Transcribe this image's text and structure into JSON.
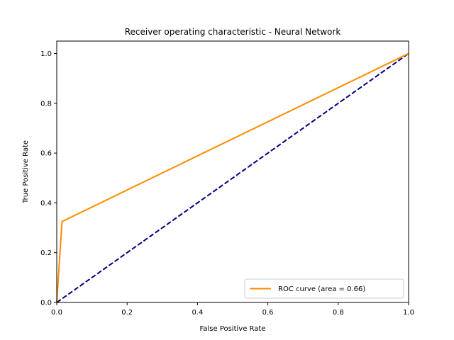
{
  "chart_data": {
    "type": "line",
    "title": "Receiver operating characteristic - Neural Network",
    "xlabel": "False Positive Rate",
    "ylabel": "True Positive Rate",
    "xlim": [
      0.0,
      1.0
    ],
    "ylim": [
      0.0,
      1.05
    ],
    "xticks": [
      "0.0",
      "0.2",
      "0.4",
      "0.6",
      "0.8",
      "1.0"
    ],
    "yticks": [
      "0.0",
      "0.2",
      "0.4",
      "0.6",
      "0.8",
      "1.0"
    ],
    "grid": false,
    "legend_position": "lower-right",
    "series": [
      {
        "name": "ROC curve (area = 0.66)",
        "color": "#ff8c00",
        "style": "solid",
        "x": [
          0.0,
          0.015,
          1.0
        ],
        "y": [
          0.0,
          0.325,
          1.0
        ]
      },
      {
        "color": "#000080",
        "style": "dashed",
        "x": [
          0.0,
          1.0
        ],
        "y": [
          0.0,
          1.0
        ]
      }
    ]
  }
}
